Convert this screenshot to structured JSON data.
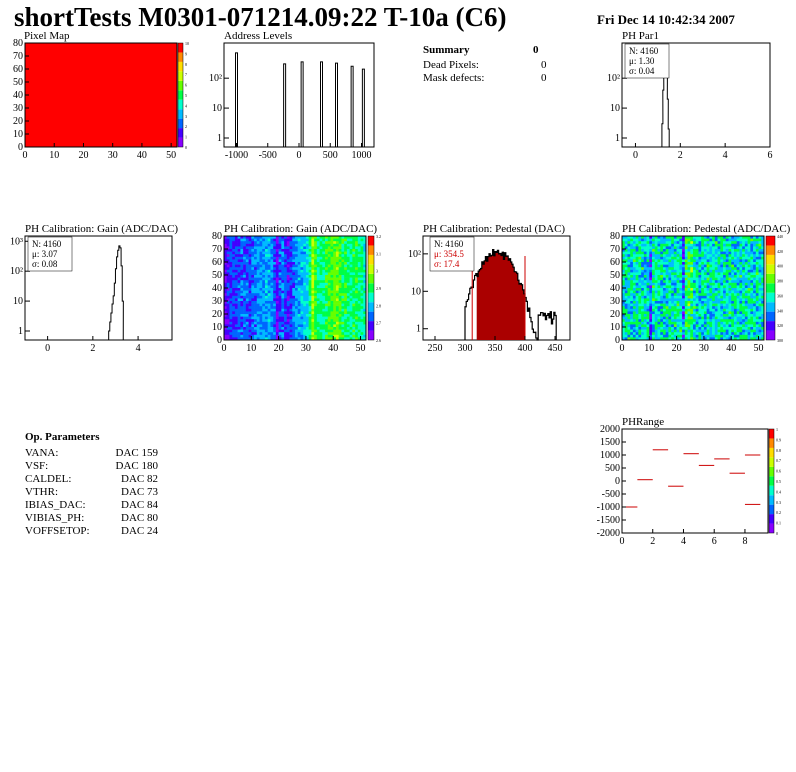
{
  "header": {
    "title": "shortTests M0301-071214.09:22 T-10a (C6)",
    "date": "Fri Dec 14 10:42:34 2007"
  },
  "summary": {
    "label": "Summary",
    "value": "0",
    "rows": [
      {
        "label": "Dead Pixels:",
        "value": "0"
      },
      {
        "label": "Mask defects:",
        "value": "0"
      }
    ]
  },
  "op_params": {
    "title": "Op. Parameters",
    "rows": [
      {
        "name": "VANA:",
        "value": "159 DAC"
      },
      {
        "name": "VSF:",
        "value": "180 DAC"
      },
      {
        "name": "CALDEL:",
        "value": "82 DAC"
      },
      {
        "name": "VTHR:",
        "value": "73 DAC"
      },
      {
        "name": "IBIAS_DAC:",
        "value": "84 DAC"
      },
      {
        "name": "VIBIAS_PH:",
        "value": "80 DAC"
      },
      {
        "name": "VOFFSETOP:",
        "value": "24 DAC"
      }
    ]
  },
  "colors": {
    "map_red": "#ff0000",
    "hist_line": "#000000",
    "stats_red": "#cc0000",
    "hatch": "#aa0000"
  },
  "chart_data": [
    {
      "id": "pixel_map",
      "type": "heatmap",
      "title": "Pixel Map",
      "xlim": [
        0,
        52
      ],
      "ylim": [
        0,
        80
      ],
      "xticks": [
        "0",
        "10",
        "20",
        "30",
        "40",
        "50"
      ],
      "yticks": [
        "0",
        "10",
        "20",
        "30",
        "40",
        "50",
        "60",
        "70",
        "80"
      ],
      "zlim": [
        0,
        10
      ],
      "zticks": [
        "0",
        "1",
        "2",
        "3",
        "4",
        "5",
        "6",
        "7",
        "8",
        "9",
        "10"
      ],
      "uniform_value": 10
    },
    {
      "id": "address_levels",
      "type": "bar",
      "title": "Address Levels",
      "xlim": [
        -1200,
        1200
      ],
      "xticks": [
        "-1000",
        "-500",
        "0",
        "500",
        "1000"
      ],
      "log_y": true,
      "yticks": [
        "1",
        "10",
        "10²"
      ],
      "peaks": [
        {
          "x": -1000,
          "count": 700
        },
        {
          "x": -230,
          "count": 300
        },
        {
          "x": 50,
          "count": 350
        },
        {
          "x": 360,
          "count": 350
        },
        {
          "x": 600,
          "count": 320
        },
        {
          "x": 850,
          "count": 250
        },
        {
          "x": 1030,
          "count": 200
        }
      ]
    },
    {
      "id": "ph_par1",
      "type": "bar",
      "title": "PH Par1",
      "xlim": [
        -0.6,
        6
      ],
      "xticks": [
        "0",
        "2",
        "4",
        "6"
      ],
      "log_y": true,
      "yticks": [
        "1",
        "10",
        "10²"
      ],
      "stats": {
        "n": "N: 4160",
        "mu": "μ: 1.30",
        "sigma": "σ: 0.04"
      },
      "bins": [
        {
          "x": 1.18,
          "c": 3
        },
        {
          "x": 1.22,
          "c": 40
        },
        {
          "x": 1.26,
          "c": 300
        },
        {
          "x": 1.3,
          "c": 700
        },
        {
          "x": 1.34,
          "c": 500
        },
        {
          "x": 1.38,
          "c": 120
        },
        {
          "x": 1.42,
          "c": 20
        },
        {
          "x": 1.46,
          "c": 2
        }
      ]
    },
    {
      "id": "gain_hist",
      "type": "bar",
      "title": "PH Calibration: Gain (ADC/DAC)",
      "xlim": [
        -1,
        5.5
      ],
      "xticks": [
        "0",
        "2",
        "4"
      ],
      "log_y": true,
      "yticks": [
        "1",
        "10",
        "10²",
        "10³"
      ],
      "stats": {
        "n": "N: 4160",
        "mu": "μ: 3.07",
        "sigma": "σ: 0.08"
      },
      "bins": [
        {
          "x": 2.7,
          "c": 1
        },
        {
          "x": 2.75,
          "c": 2
        },
        {
          "x": 2.8,
          "c": 4
        },
        {
          "x": 2.85,
          "c": 8
        },
        {
          "x": 2.9,
          "c": 15
        },
        {
          "x": 2.95,
          "c": 40
        },
        {
          "x": 3.0,
          "c": 120
        },
        {
          "x": 3.05,
          "c": 300
        },
        {
          "x": 3.1,
          "c": 500
        },
        {
          "x": 3.15,
          "c": 700
        },
        {
          "x": 3.2,
          "c": 600
        },
        {
          "x": 3.25,
          "c": 150
        },
        {
          "x": 3.3,
          "c": 10
        }
      ]
    },
    {
      "id": "gain_map",
      "type": "heatmap",
      "title": "PH Calibration: Gain (ADC/DAC)",
      "xlim": [
        0,
        52
      ],
      "ylim": [
        0,
        80
      ],
      "xticks": [
        "0",
        "10",
        "20",
        "30",
        "40",
        "50"
      ],
      "yticks": [
        "0",
        "10",
        "20",
        "30",
        "40",
        "50",
        "60",
        "70",
        "80"
      ],
      "zlim": [
        2.6,
        3.25
      ],
      "zticks": [
        "2.6",
        "2.7",
        "2.8",
        "2.9",
        "3",
        "3.1",
        "3.2"
      ],
      "column_profile": [
        0.95,
        0.9,
        0.85,
        0.85,
        0.85,
        0.82,
        0.8,
        0.82,
        0.8,
        0.85,
        0.8,
        0.78,
        0.75,
        0.75,
        0.75,
        0.72,
        0.72,
        0.75,
        0.8,
        0.95,
        0.82,
        0.8,
        0.85,
        0.9,
        0.85,
        0.8,
        0.75,
        0.72,
        0.7,
        0.7,
        0.65,
        0.55,
        0.35,
        0.45,
        0.55,
        0.55,
        0.55,
        0.5,
        0.45,
        0.45,
        0.4,
        0.4,
        0.45,
        0.5,
        0.5,
        0.55,
        0.55,
        0.5,
        0.5,
        0.55,
        0.55,
        0.6
      ]
    },
    {
      "id": "pedestal_hist",
      "type": "bar",
      "title": "PH Calibration: Pedestal (DAC)",
      "xlim": [
        230,
        475
      ],
      "xticks": [
        "250",
        "300",
        "350",
        "400",
        "450"
      ],
      "log_y": true,
      "yticks": [
        "1",
        "10",
        "10²"
      ],
      "stats": {
        "n": "N: 4160",
        "mu": "μ: 354.5",
        "sigma": "σ: 17.4"
      },
      "cut_low": 320,
      "cut_high": 400
    },
    {
      "id": "pedestal_map",
      "type": "heatmap",
      "title": "PH Calibration: Pedestal (ADC/DAC)",
      "xlim": [
        0,
        52
      ],
      "ylim": [
        0,
        80
      ],
      "xticks": [
        "0",
        "10",
        "20",
        "30",
        "40",
        "50"
      ],
      "yticks": [
        "0",
        "10",
        "20",
        "30",
        "40",
        "50",
        "60",
        "70",
        "80"
      ],
      "zlim": [
        300,
        450
      ],
      "zticks": [
        "300",
        "320",
        "340",
        "360",
        "380",
        "400",
        "420",
        "440"
      ]
    },
    {
      "id": "ph_range",
      "type": "scatter",
      "title": "PHRange",
      "xlim": [
        0,
        9.5
      ],
      "ylim": [
        -2000,
        2000
      ],
      "xticks": [
        "0",
        "2",
        "4",
        "6",
        "8"
      ],
      "yticks": [
        "2000",
        "1500",
        "1000",
        "500",
        "0",
        "-500",
        "-1000",
        "-1500",
        "-2000"
      ],
      "ytick_vals": [
        2000,
        1500,
        1000,
        500,
        0,
        -500,
        -1000,
        -1500,
        -2000
      ],
      "zticks": [
        "0",
        "0.1",
        "0.2",
        "0.3",
        "0.4",
        "0.5",
        "0.6",
        "0.7",
        "0.8",
        "0.9",
        "1"
      ],
      "segments": [
        {
          "x": 0,
          "y": -1000
        },
        {
          "x": 1,
          "y": 50
        },
        {
          "x": 2,
          "y": 1200
        },
        {
          "x": 3,
          "y": -200
        },
        {
          "x": 4,
          "y": 1050
        },
        {
          "x": 5,
          "y": 600
        },
        {
          "x": 6,
          "y": 850
        },
        {
          "x": 7,
          "y": 300
        },
        {
          "x": 8,
          "y": 1000
        },
        {
          "x": 8,
          "y": -900
        }
      ]
    }
  ]
}
